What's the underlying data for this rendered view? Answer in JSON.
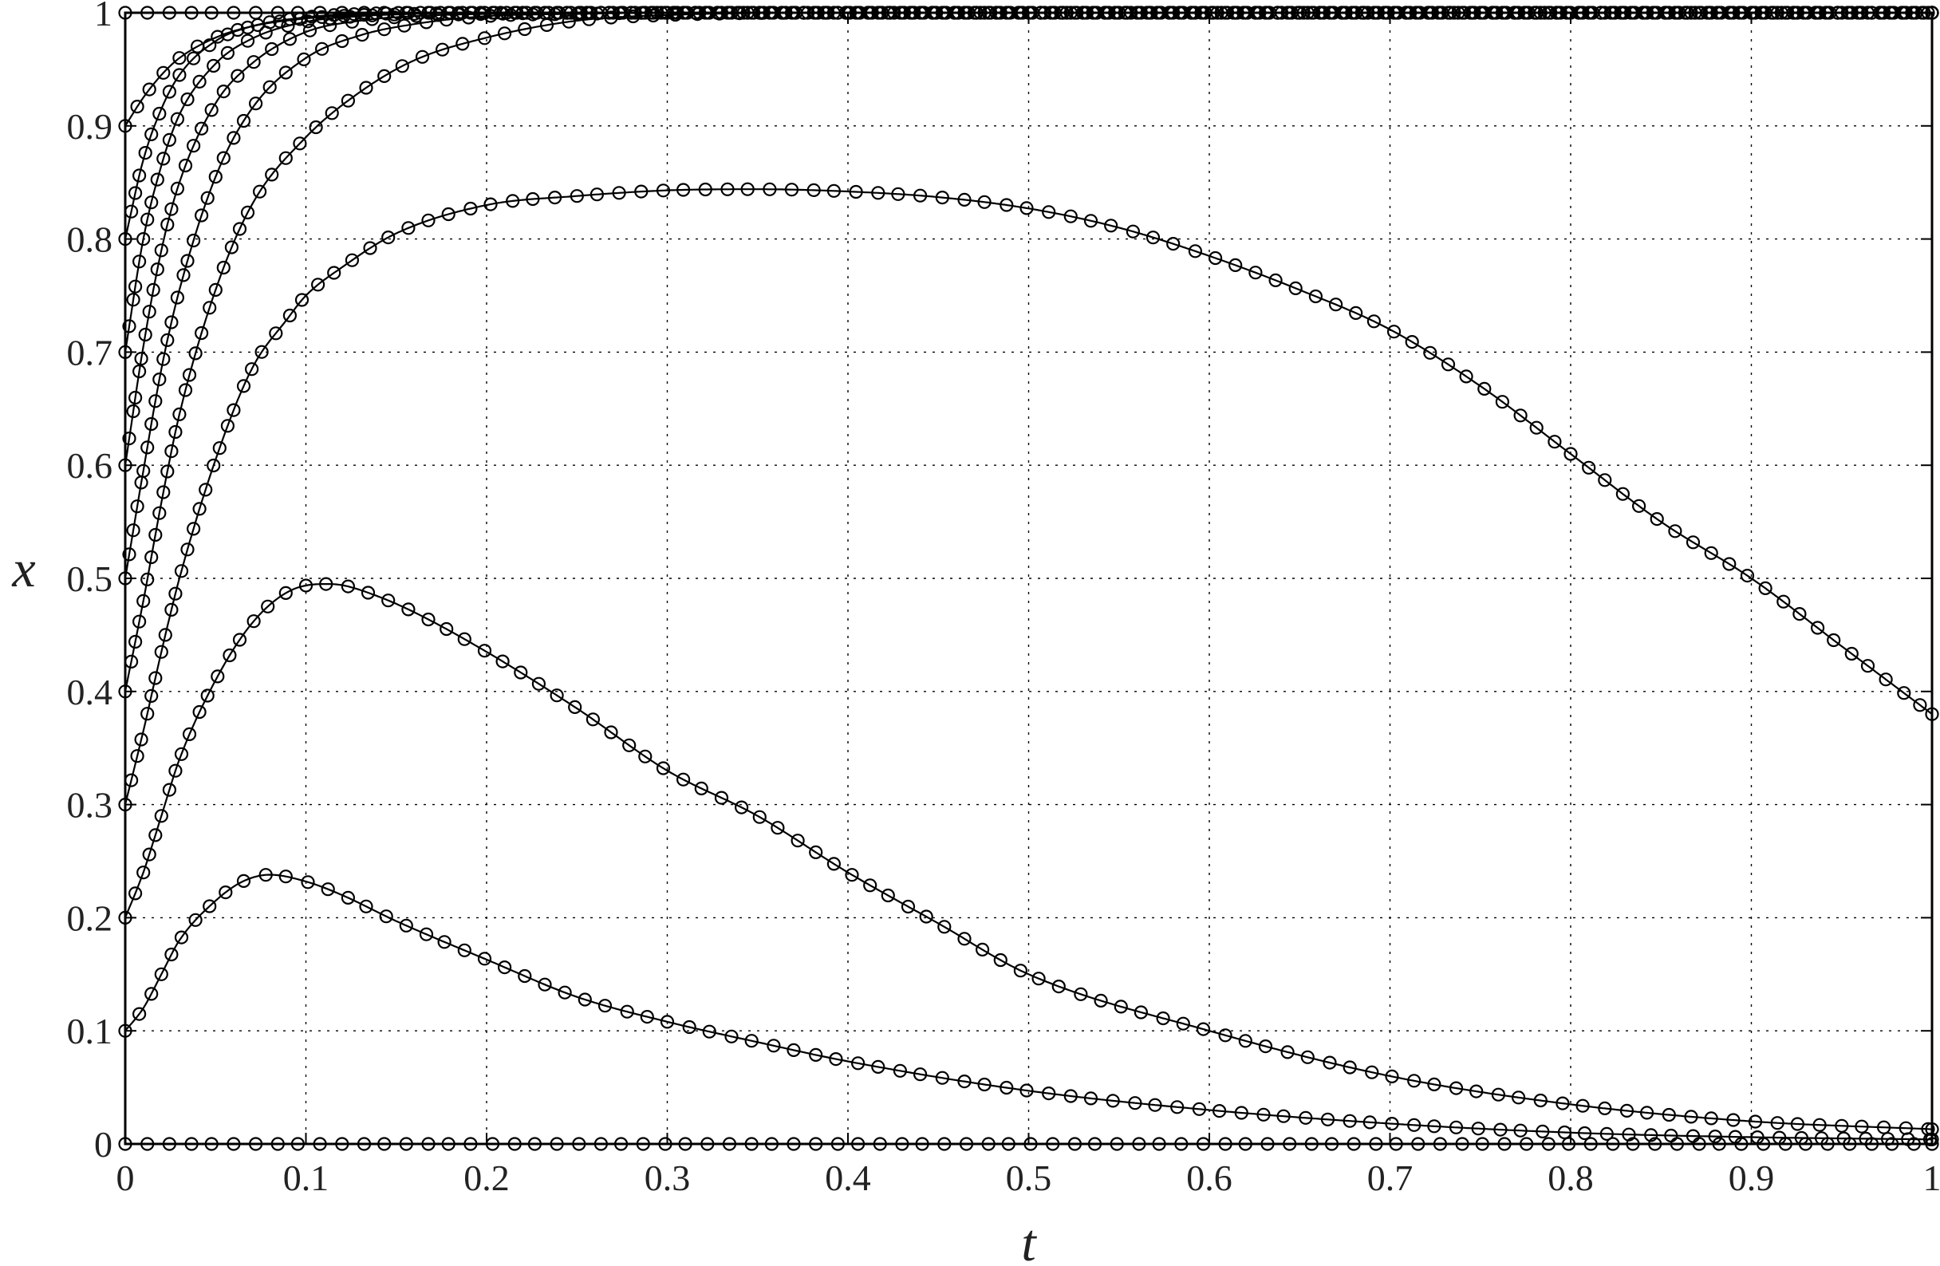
{
  "chart_data": {
    "type": "line",
    "title": "",
    "xlabel": "t",
    "ylabel": "x",
    "xlim": [
      0,
      1
    ],
    "ylim": [
      0,
      1
    ],
    "xticks": [
      "0",
      "0.1",
      "0.2",
      "0.3",
      "0.4",
      "0.5",
      "0.6",
      "0.7",
      "0.8",
      "0.9",
      "1"
    ],
    "yticks": [
      "0",
      "0.1",
      "0.2",
      "0.3",
      "0.4",
      "0.5",
      "0.6",
      "0.7",
      "0.8",
      "0.9",
      "1"
    ],
    "grid": true,
    "marker": "circle",
    "color": "#000000",
    "series": [
      {
        "x": [
          0,
          0.01,
          0.1,
          0.2,
          0.3,
          0.5,
          0.7,
          0.9,
          1.0
        ],
        "y": [
          0,
          0,
          0,
          0,
          0,
          0,
          0,
          0,
          0
        ]
      },
      {
        "x": [
          0,
          0.01,
          0.02,
          0.03,
          0.05,
          0.065,
          0.08,
          0.1,
          0.12,
          0.15,
          0.2,
          0.25,
          0.3,
          0.35,
          0.4,
          0.5,
          0.6,
          0.7,
          0.8,
          0.9,
          1.0
        ],
        "y": [
          0.1,
          0.12,
          0.15,
          0.18,
          0.215,
          0.232,
          0.238,
          0.232,
          0.22,
          0.197,
          0.163,
          0.13,
          0.108,
          0.09,
          0.073,
          0.047,
          0.03,
          0.018,
          0.01,
          0.006,
          0.004
        ]
      },
      {
        "x": [
          0,
          0.01,
          0.02,
          0.03,
          0.05,
          0.07,
          0.09,
          0.11,
          0.12,
          0.14,
          0.16,
          0.2,
          0.25,
          0.3,
          0.35,
          0.4,
          0.45,
          0.5,
          0.6,
          0.7,
          0.8,
          0.9,
          1.0
        ],
        "y": [
          0.2,
          0.24,
          0.29,
          0.34,
          0.41,
          0.46,
          0.488,
          0.495,
          0.494,
          0.484,
          0.47,
          0.435,
          0.385,
          0.33,
          0.29,
          0.24,
          0.195,
          0.15,
          0.1,
          0.06,
          0.035,
          0.02,
          0.013
        ]
      },
      {
        "x": [
          0,
          0.01,
          0.02,
          0.03,
          0.05,
          0.07,
          0.09,
          0.1,
          0.12,
          0.15,
          0.2,
          0.25,
          0.3,
          0.35,
          0.4,
          0.45,
          0.5,
          0.55,
          0.6,
          0.65,
          0.7,
          0.75,
          0.8,
          0.85,
          0.9,
          0.95,
          1.0
        ],
        "y": [
          0.3,
          0.365,
          0.435,
          0.5,
          0.605,
          0.685,
          0.73,
          0.75,
          0.775,
          0.805,
          0.83,
          0.838,
          0.843,
          0.844,
          0.842,
          0.837,
          0.827,
          0.81,
          0.785,
          0.755,
          0.72,
          0.67,
          0.61,
          0.55,
          0.5,
          0.44,
          0.38
        ]
      },
      {
        "x": [
          0,
          0.01,
          0.02,
          0.03,
          0.05,
          0.07,
          0.1,
          0.13,
          0.16,
          0.2,
          0.25,
          0.3,
          0.4,
          0.5,
          0.6,
          0.7,
          0.8,
          0.9,
          1.0
        ],
        "y": [
          0.4,
          0.48,
          0.567,
          0.645,
          0.755,
          0.83,
          0.89,
          0.93,
          0.958,
          0.978,
          0.993,
          0.998,
          1.0,
          1.0,
          1.0,
          1.0,
          1.0,
          1.0,
          1.0
        ]
      },
      {
        "x": [
          0,
          0.01,
          0.02,
          0.03,
          0.05,
          0.07,
          0.1,
          0.13,
          0.16,
          0.2,
          0.25,
          0.3,
          0.4,
          0.5,
          0.6,
          0.7,
          0.8,
          0.9,
          1.0
        ],
        "y": [
          0.5,
          0.595,
          0.685,
          0.755,
          0.855,
          0.915,
          0.96,
          0.98,
          0.99,
          0.997,
          0.999,
          1.0,
          1.0,
          1.0,
          1.0,
          1.0,
          1.0,
          1.0,
          1.0
        ]
      },
      {
        "x": [
          0,
          0.01,
          0.02,
          0.03,
          0.05,
          0.07,
          0.1,
          0.13,
          0.16,
          0.2,
          0.3,
          0.5,
          0.7,
          0.9,
          1.0
        ],
        "y": [
          0.6,
          0.705,
          0.79,
          0.85,
          0.92,
          0.955,
          0.983,
          0.993,
          0.997,
          0.999,
          1.0,
          1.0,
          1.0,
          1.0,
          1.0
        ]
      },
      {
        "x": [
          0,
          0.01,
          0.02,
          0.03,
          0.05,
          0.07,
          0.1,
          0.13,
          0.16,
          0.2,
          0.3,
          0.5,
          0.7,
          0.9,
          1.0
        ],
        "y": [
          0.7,
          0.8,
          0.865,
          0.91,
          0.955,
          0.977,
          0.992,
          0.997,
          0.999,
          1.0,
          1.0,
          1.0,
          1.0,
          1.0,
          1.0
        ]
      },
      {
        "x": [
          0,
          0.01,
          0.02,
          0.03,
          0.05,
          0.07,
          0.1,
          0.13,
          0.16,
          0.2,
          0.3,
          0.5,
          0.7,
          0.9,
          1.0
        ],
        "y": [
          0.8,
          0.87,
          0.915,
          0.945,
          0.975,
          0.988,
          0.996,
          0.999,
          1.0,
          1.0,
          1.0,
          1.0,
          1.0,
          1.0,
          1.0
        ]
      },
      {
        "x": [
          0,
          0.01,
          0.02,
          0.03,
          0.05,
          0.07,
          0.1,
          0.13,
          0.16,
          0.2,
          0.3,
          0.5,
          0.7,
          0.9,
          1.0
        ],
        "y": [
          0.9,
          0.925,
          0.945,
          0.96,
          0.978,
          0.988,
          0.995,
          0.998,
          1.0,
          1.0,
          1.0,
          1.0,
          1.0,
          1.0,
          1.0
        ]
      },
      {
        "x": [
          0,
          0.01,
          0.1,
          0.2,
          0.3,
          0.5,
          0.7,
          0.9,
          1.0
        ],
        "y": [
          1,
          1,
          1,
          1,
          1,
          1,
          1,
          1,
          1
        ]
      }
    ]
  }
}
